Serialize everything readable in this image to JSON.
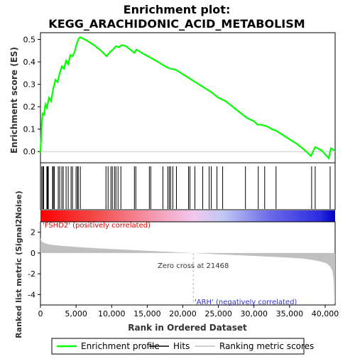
{
  "chart_data": {
    "type": "line",
    "title": "Enrichment plot:",
    "subtitle": "KEGG_ARACHIDONIC_ACID_METABOLISM",
    "es_panel": {
      "ylabel": "Enrichment score (ES)",
      "ylim": [
        -0.05,
        0.53
      ],
      "yticks": [
        0.0,
        0.1,
        0.2,
        0.3,
        0.4,
        0.5
      ],
      "ytick_labels": [
        "0.0",
        "0.1",
        "0.2",
        "0.3",
        "0.4",
        "0.5"
      ],
      "series_color": "#00ff00",
      "x": [
        0,
        150,
        300,
        500,
        700,
        900,
        1200,
        1500,
        1800,
        2100,
        2400,
        2700,
        3000,
        3300,
        3600,
        3900,
        4200,
        4500,
        4800,
        5000,
        5200,
        5400,
        5600,
        6500,
        7500,
        8500,
        9300,
        9800,
        10200,
        10600,
        11000,
        11400,
        12000,
        12600,
        13200,
        13500,
        14500,
        15400,
        16500,
        17500,
        18200,
        19000,
        20000,
        21000,
        22000,
        23000,
        24000,
        25000,
        26000,
        27000,
        28000,
        29000,
        30000,
        30500,
        31000,
        31500,
        32000,
        32500,
        33000,
        34000,
        35000,
        36000,
        37000,
        38000,
        38300,
        38600,
        39500,
        40500,
        40800,
        41300
      ],
      "y": [
        -0.005,
        0.11,
        0.17,
        0.165,
        0.21,
        0.195,
        0.24,
        0.225,
        0.28,
        0.32,
        0.31,
        0.35,
        0.38,
        0.37,
        0.405,
        0.39,
        0.43,
        0.425,
        0.445,
        0.47,
        0.49,
        0.505,
        0.51,
        0.495,
        0.475,
        0.45,
        0.425,
        0.445,
        0.455,
        0.47,
        0.465,
        0.475,
        0.47,
        0.455,
        0.44,
        0.455,
        0.435,
        0.42,
        0.4,
        0.38,
        0.37,
        0.365,
        0.345,
        0.325,
        0.305,
        0.285,
        0.265,
        0.24,
        0.225,
        0.2,
        0.175,
        0.15,
        0.135,
        0.12,
        0.12,
        0.115,
        0.11,
        0.1,
        0.095,
        0.075,
        0.055,
        0.035,
        0.01,
        -0.02,
        0.0,
        0.02,
        0.005,
        -0.03,
        0.015,
        0.005
      ]
    },
    "hits": [
      180,
      330,
      450,
      900,
      1000,
      1100,
      1700,
      1800,
      1950,
      2500,
      2700,
      3000,
      3200,
      3600,
      3900,
      4300,
      4500,
      5000,
      5200,
      5300,
      5600,
      9200,
      9500,
      9900,
      10100,
      10400,
      10600,
      10900,
      11300,
      13200,
      13400,
      15300,
      15500,
      17200,
      17900,
      18100,
      18300,
      18600,
      19100,
      20800,
      21000,
      21700,
      22800,
      23700,
      24000,
      24800,
      25600,
      28800,
      30600,
      31500,
      33100,
      38100,
      38600,
      40700
    ],
    "metric_panel": {
      "ylabel": "Ranked list metric (Signal2Noise)",
      "ylim": [
        -5,
        3
      ],
      "yticks": [
        -4,
        -2,
        0,
        2
      ],
      "ytick_labels": [
        "-4",
        "-2",
        "0",
        "2"
      ],
      "fill_color": "#c0c0c0",
      "x": [
        0,
        100,
        300,
        600,
        1000,
        2000,
        3000,
        5000,
        8000,
        12000,
        16000,
        19000,
        21468,
        24000,
        28000,
        32000,
        35000,
        37000,
        38500,
        39500,
        40200,
        40700,
        41000,
        41200,
        41300,
        41400
      ],
      "y": [
        1.5,
        1.2,
        1.05,
        0.95,
        0.85,
        0.75,
        0.68,
        0.58,
        0.45,
        0.32,
        0.18,
        0.08,
        0.0,
        -0.1,
        -0.22,
        -0.35,
        -0.45,
        -0.55,
        -0.7,
        -0.85,
        -1.0,
        -1.3,
        -1.7,
        -2.6,
        -4.8,
        -4.8
      ]
    },
    "xlabel": "Rank in Ordered Dataset",
    "xlim": [
      0,
      41400
    ],
    "xticks": [
      0,
      5000,
      10000,
      15000,
      20000,
      25000,
      30000,
      35000,
      40000
    ],
    "xtick_labels": [
      "0",
      "5,000",
      "10,000",
      "15,000",
      "20,000",
      "25,000",
      "30,000",
      "35,000",
      "40,000"
    ],
    "zero_cross_rank": 21468,
    "annotations": {
      "zero_cross": "Zero cross at 21468",
      "positive": "'FSHD2' (positively correlated)",
      "negative": "'ARH' (negatively correlated)"
    },
    "legend": {
      "placement": "bottom",
      "entries": [
        {
          "label": "Enrichment profile",
          "color": "#00ff00",
          "style": "line"
        },
        {
          "label": "Hits",
          "color": "#000000",
          "style": "line"
        },
        {
          "label": "Ranking metric scores",
          "color": "#c0c0c0",
          "style": "line"
        }
      ]
    }
  }
}
